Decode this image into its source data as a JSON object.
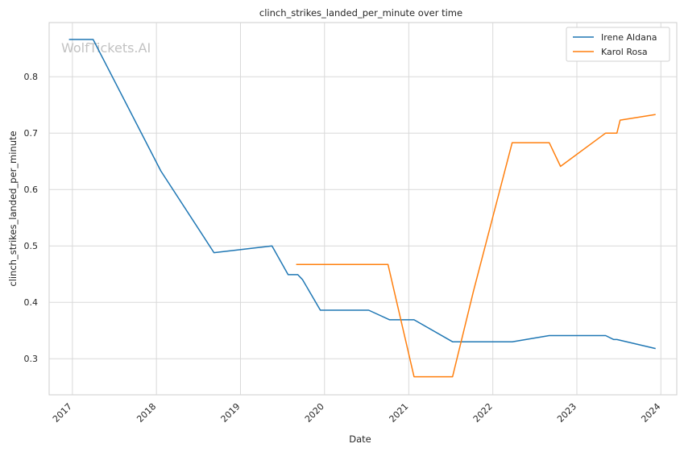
{
  "chart_data": {
    "type": "line",
    "title": "clinch_strikes_landed_per_minute over time",
    "xlabel": "Date",
    "ylabel": "clinch_strikes_landed_per_minute",
    "watermark": "WolfTickets.AI",
    "x_ticks": [
      "2017",
      "2018",
      "2019",
      "2020",
      "2021",
      "2022",
      "2023",
      "2024"
    ],
    "y_ticks": [
      "0.3",
      "0.4",
      "0.5",
      "0.6",
      "0.7",
      "0.8"
    ],
    "xlim": [
      "2016-09-22",
      "2024-03-10"
    ],
    "ylim": [
      0.236,
      0.896
    ],
    "grid": true,
    "legend_position": "top-right",
    "series": [
      {
        "name": "Irene Aldana",
        "color": "#1f77b4",
        "points": [
          [
            "2016-12-17",
            0.866
          ],
          [
            "2017-04-01",
            0.866
          ],
          [
            "2018-01-20",
            0.633
          ],
          [
            "2018-09-08",
            0.488
          ],
          [
            "2019-05-18",
            0.5
          ],
          [
            "2019-07-27",
            0.449
          ],
          [
            "2019-09-07",
            0.449
          ],
          [
            "2019-09-28",
            0.44
          ],
          [
            "2019-12-14",
            0.386
          ],
          [
            "2020-07-11",
            0.386
          ],
          [
            "2020-10-10",
            0.369
          ],
          [
            "2021-01-24",
            0.369
          ],
          [
            "2021-07-10",
            0.33
          ],
          [
            "2022-03-26",
            0.33
          ],
          [
            "2022-09-03",
            0.341
          ],
          [
            "2023-05-06",
            0.341
          ],
          [
            "2023-06-10",
            0.334
          ],
          [
            "2023-06-24",
            0.334
          ],
          [
            "2023-12-09",
            0.318
          ]
        ]
      },
      {
        "name": "Karol Rosa",
        "color": "#ff7f0e",
        "points": [
          [
            "2019-08-31",
            0.467
          ],
          [
            "2020-10-03",
            0.467
          ],
          [
            "2021-01-24",
            0.268
          ],
          [
            "2021-07-10",
            0.268
          ],
          [
            "2021-10-09",
            0.42
          ],
          [
            "2022-03-26",
            0.683
          ],
          [
            "2022-09-03",
            0.683
          ],
          [
            "2022-10-22",
            0.641
          ],
          [
            "2023-05-06",
            0.7
          ],
          [
            "2023-06-24",
            0.7
          ],
          [
            "2023-07-08",
            0.723
          ],
          [
            "2023-12-09",
            0.733
          ]
        ]
      }
    ]
  }
}
